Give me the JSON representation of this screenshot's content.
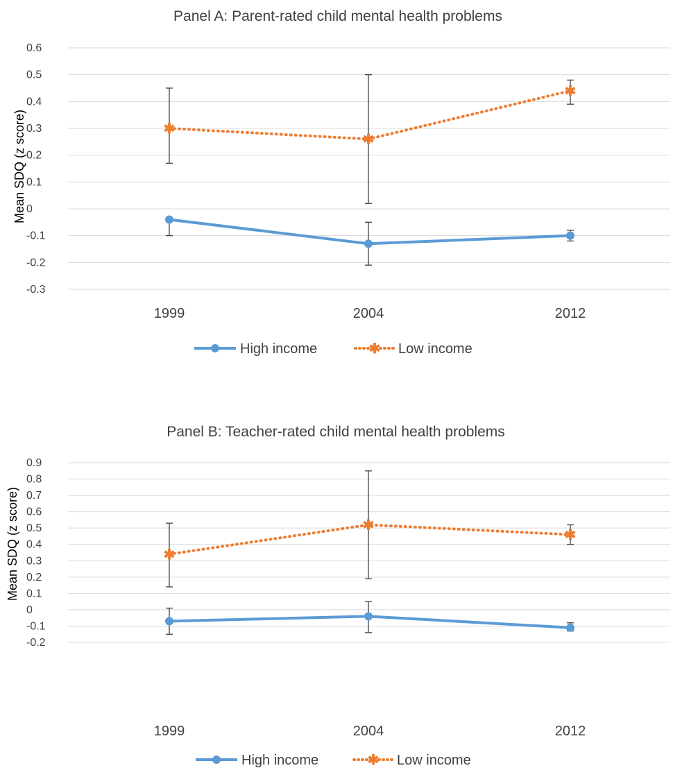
{
  "colors": {
    "high": "#5B9BD5",
    "low": "#ED7D31",
    "grid": "#D9D9D9",
    "errorbar": "#404040"
  },
  "legend": {
    "high": "High income",
    "low": "Low income"
  },
  "chart_data": [
    {
      "type": "line",
      "title": "Panel A: Parent-rated child mental health problems",
      "xlabel": "",
      "ylabel": "Mean SDQ (z score)",
      "categories": [
        "1999",
        "2004",
        "2012"
      ],
      "ylim": [
        -0.3,
        0.6
      ],
      "yticks": [
        -0.3,
        -0.2,
        -0.1,
        0,
        0.1,
        0.2,
        0.3,
        0.4,
        0.5,
        0.6
      ],
      "ytick_labels": [
        "-0.3",
        "-0.2",
        "-0.1",
        "0",
        "0.1",
        "0.2",
        "0.3",
        "0.4",
        "0.5",
        "0.6"
      ],
      "grid": true,
      "legend_position": "bottom",
      "series": [
        {
          "name": "High income",
          "key": "high",
          "style": "solid",
          "values": [
            -0.04,
            -0.13,
            -0.1
          ],
          "err_low": [
            -0.1,
            -0.21,
            -0.12
          ],
          "err_high": [
            -0.04,
            -0.05,
            -0.08
          ]
        },
        {
          "name": "Low income",
          "key": "low",
          "style": "dotted",
          "values": [
            0.3,
            0.26,
            0.44
          ],
          "err_low": [
            0.17,
            0.02,
            0.39
          ],
          "err_high": [
            0.45,
            0.5,
            0.48
          ]
        }
      ]
    },
    {
      "type": "line",
      "title": "Panel B: Teacher-rated child mental health problems",
      "xlabel": "",
      "ylabel": "Mean SDQ (z score)",
      "categories": [
        "1999",
        "2004",
        "2012"
      ],
      "ylim": [
        -0.2,
        0.9
      ],
      "yticks": [
        -0.2,
        -0.1,
        0,
        0.1,
        0.2,
        0.3,
        0.4,
        0.5,
        0.6,
        0.7,
        0.8,
        0.9
      ],
      "ytick_labels": [
        "-0.2",
        "-0.1",
        "0",
        "0.1",
        "0.2",
        "0.3",
        "0.4",
        "0.5",
        "0.6",
        "0.7",
        "0.8",
        "0.9"
      ],
      "grid": true,
      "legend_position": "bottom",
      "series": [
        {
          "name": "High income",
          "key": "high",
          "style": "solid",
          "values": [
            -0.07,
            -0.04,
            -0.11
          ],
          "err_low": [
            -0.15,
            -0.14,
            -0.13
          ],
          "err_high": [
            0.01,
            0.05,
            -0.08
          ]
        },
        {
          "name": "Low income",
          "key": "low",
          "style": "dotted",
          "values": [
            0.34,
            0.52,
            0.46
          ],
          "err_low": [
            0.14,
            0.19,
            0.4
          ],
          "err_high": [
            0.53,
            0.85,
            0.52
          ]
        }
      ]
    }
  ]
}
